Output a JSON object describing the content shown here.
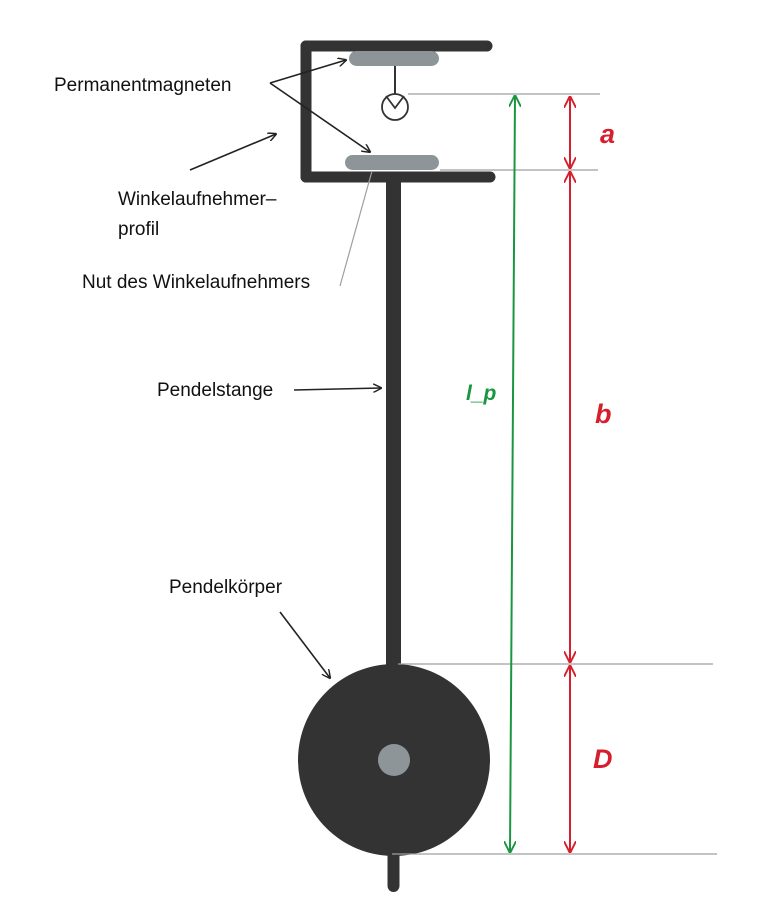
{
  "colors": {
    "frame": "#333333",
    "magnet": "#8d9599",
    "hub": "#8d9599",
    "ref_line": "#9aa0a3",
    "dim_red": "#d61f2c",
    "dim_green": "#1a9641",
    "text": "#111111"
  },
  "labels": {
    "magnets": "Permanentmagneten",
    "profile_line1": "Winkelaufnehmer–",
    "profile_line2": "profil",
    "groove": "Nut des Winkelaufnehmers",
    "rod": "Pendelstange",
    "bob": "Pendelkörper"
  },
  "dimensions": {
    "a": "a",
    "b": "b",
    "D": "D",
    "lp": "l_p"
  }
}
